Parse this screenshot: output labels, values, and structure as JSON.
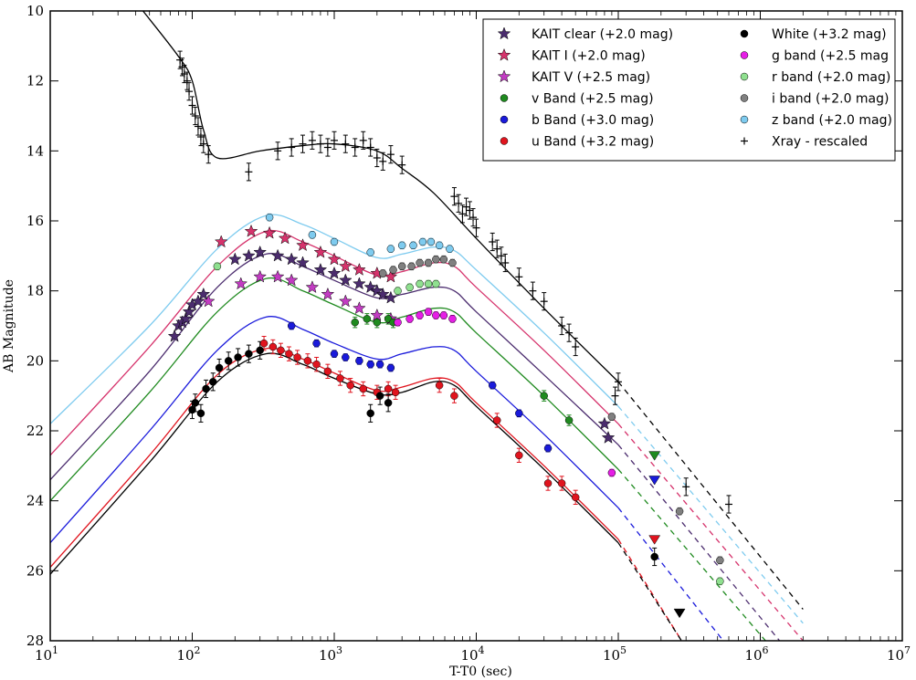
{
  "chart_data": {
    "type": "scatter",
    "xlabel": "T-T0 (sec)",
    "ylabel": "AB Magnitude",
    "xscale": "log",
    "xlim": [
      10,
      10000000
    ],
    "ylim": [
      28,
      10
    ],
    "y_inverted": true,
    "x_tick_labels": [
      "10^1",
      "10^2",
      "10^3",
      "10^4",
      "10^5",
      "10^6",
      "10^7"
    ],
    "x_tick_bases": [
      "10",
      "10",
      "10",
      "10",
      "10",
      "10",
      "10"
    ],
    "x_tick_exponents": [
      "1",
      "2",
      "3",
      "4",
      "5",
      "6",
      "7"
    ],
    "y_tick_labels": [
      "10",
      "12",
      "14",
      "16",
      "18",
      "20",
      "22",
      "24",
      "26",
      "28"
    ],
    "grid": false,
    "legend_position": "top-right",
    "legend": [
      {
        "label": "KAIT clear (+2.0 mag)",
        "marker": "star",
        "color": "#4b2c6e"
      },
      {
        "label": "KAIT I (+2.0 mag)",
        "marker": "star",
        "color": "#d6336c"
      },
      {
        "label": "KAIT V (+2.5 mag)",
        "marker": "star",
        "color": "#c23cc2"
      },
      {
        "label": "v Band (+2.5 mag)",
        "marker": "circle",
        "color": "#1f8a1f"
      },
      {
        "label": "b Band (+3.0 mag)",
        "marker": "circle",
        "color": "#1a1adb"
      },
      {
        "label": "u Band (+3.2 mag)",
        "marker": "circle",
        "color": "#e0141e"
      },
      {
        "label": "White (+3.2 mag)",
        "marker": "circle",
        "color": "#000000"
      },
      {
        "label": "g band (+2.5 mag",
        "marker": "circle",
        "color": "#e61ee6"
      },
      {
        "label": "r band (+2.0 mag)",
        "marker": "circle",
        "color": "#8fe08f"
      },
      {
        "label": "i band (+2.0 mag)",
        "marker": "circle",
        "color": "#808080"
      },
      {
        "label": "z band (+2.0 mag)",
        "marker": "circle",
        "color": "#7ecbef"
      },
      {
        "label": "Xray - rescaled",
        "marker": "plus",
        "color": "#000000"
      }
    ],
    "model_curves": [
      {
        "color": "#7ecbef",
        "x": [
          10,
          50,
          150,
          330,
          600,
          1000,
          2000,
          3000,
          5000,
          7000,
          10000,
          30000,
          100000
        ],
        "y": [
          21.8,
          19.0,
          16.8,
          15.85,
          16.1,
          16.5,
          17.05,
          16.95,
          16.75,
          16.85,
          17.4,
          19.2,
          21.3
        ],
        "dashed_to": [
          2000000,
          27.5
        ]
      },
      {
        "color": "#d6336c",
        "x": [
          10,
          50,
          150,
          330,
          600,
          1000,
          2000,
          3000,
          5000,
          7000,
          10000,
          30000,
          100000
        ],
        "y": [
          22.7,
          19.6,
          17.3,
          16.3,
          16.6,
          17.0,
          17.55,
          17.45,
          17.2,
          17.3,
          17.9,
          19.7,
          21.8
        ],
        "dashed_to": [
          2000000,
          28.0
        ]
      },
      {
        "color": "#4b2c6e",
        "x": [
          10,
          50,
          150,
          330,
          600,
          1000,
          2000,
          3000,
          5000,
          7000,
          10000,
          30000,
          100000
        ],
        "y": [
          23.4,
          20.3,
          17.9,
          16.95,
          17.3,
          17.7,
          18.2,
          18.1,
          17.9,
          18.0,
          18.6,
          20.4,
          22.4
        ],
        "dashed_to": [
          1500000,
          28.2
        ]
      },
      {
        "color": "#1f8a1f",
        "x": [
          10,
          50,
          150,
          330,
          600,
          1000,
          2000,
          3000,
          5000,
          7000,
          10000,
          30000,
          100000
        ],
        "y": [
          24.0,
          20.9,
          18.6,
          17.65,
          18.0,
          18.4,
          18.9,
          18.75,
          18.5,
          18.6,
          19.2,
          21.0,
          23.1
        ],
        "dashed_to": [
          1200000,
          28.2
        ]
      },
      {
        "color": "#1a1adb",
        "x": [
          10,
          50,
          150,
          330,
          600,
          1000,
          2000,
          3000,
          5000,
          7000,
          10000,
          30000,
          100000
        ],
        "y": [
          25.2,
          22.0,
          19.7,
          18.75,
          19.1,
          19.5,
          19.95,
          19.8,
          19.6,
          19.7,
          20.3,
          22.1,
          24.2
        ],
        "dashed_to": [
          600000,
          28.2
        ]
      },
      {
        "color": "#e0141e",
        "x": [
          10,
          50,
          150,
          330,
          600,
          1000,
          2000,
          3000,
          5000,
          7000,
          10000,
          30000,
          100000
        ],
        "y": [
          25.9,
          22.7,
          20.4,
          19.65,
          19.95,
          20.35,
          20.85,
          20.75,
          20.5,
          20.6,
          21.2,
          23.0,
          25.1
        ],
        "dashed_to": [
          300000,
          28.2
        ]
      },
      {
        "color": "#000000",
        "x": [
          10,
          50,
          150,
          330,
          600,
          1000,
          2000,
          3000,
          5000,
          7000,
          10000,
          30000,
          100000
        ],
        "y": [
          26.1,
          22.9,
          20.6,
          19.8,
          20.1,
          20.5,
          20.95,
          20.9,
          20.6,
          20.7,
          21.3,
          23.1,
          25.2
        ],
        "dashed_to": [
          300000,
          28.2
        ]
      },
      {
        "color": "#000000",
        "x": [
          45,
          80,
          100,
          120,
          150,
          300,
          600,
          1000,
          2000,
          3000,
          5000,
          10000,
          30000,
          100000
        ],
        "y": [
          10.0,
          11.3,
          12.0,
          13.4,
          14.2,
          14.0,
          13.85,
          13.8,
          14.0,
          14.5,
          15.2,
          16.5,
          18.5,
          20.6
        ],
        "dashed_to": [
          2000000,
          27.1
        ]
      }
    ],
    "series": [
      {
        "name": "Xray - rescaled",
        "marker": "plus",
        "color": "#000000",
        "err": 0.25,
        "x": [
          82,
          85,
          88,
          92,
          95,
          100,
          105,
          110,
          115,
          120,
          130,
          250,
          400,
          500,
          600,
          700,
          800,
          900,
          1000,
          1200,
          1400,
          1600,
          1800,
          2000,
          2200,
          2500,
          3000,
          7000,
          7500,
          8000,
          8500,
          9000,
          9500,
          10000,
          13000,
          14000,
          15000,
          16000,
          20000,
          25000,
          30000,
          40000,
          45000,
          50000,
          95000,
          100000,
          300000,
          600000
        ],
        "y": [
          11.4,
          11.6,
          11.8,
          12.0,
          12.3,
          12.7,
          13.0,
          13.3,
          13.6,
          13.8,
          14.1,
          14.6,
          14.0,
          13.9,
          13.8,
          13.7,
          13.8,
          13.9,
          13.7,
          13.8,
          13.9,
          13.7,
          13.9,
          14.2,
          14.3,
          14.1,
          14.4,
          15.3,
          15.5,
          15.8,
          15.6,
          15.7,
          15.9,
          16.2,
          16.6,
          16.8,
          17.0,
          17.2,
          17.6,
          18.0,
          18.3,
          19.0,
          19.2,
          19.6,
          21.0,
          20.6,
          23.6,
          24.1
        ]
      },
      {
        "name": "KAIT clear (+2.0 mag)",
        "marker": "star",
        "color": "#4b2c6e",
        "err": 0,
        "x": [
          75,
          80,
          85,
          90,
          95,
          100,
          110,
          120,
          200,
          250,
          300,
          400,
          500,
          600,
          800,
          1000,
          1200,
          1500,
          1800,
          2000,
          2200,
          2500,
          80000,
          85000
        ],
        "y": [
          19.3,
          19.0,
          18.9,
          18.8,
          18.6,
          18.4,
          18.3,
          18.1,
          17.1,
          17.0,
          16.9,
          17.0,
          17.1,
          17.2,
          17.4,
          17.5,
          17.7,
          17.8,
          17.9,
          18.0,
          18.1,
          18.2,
          21.8,
          22.2
        ]
      },
      {
        "name": "KAIT I (+2.0 mag)",
        "marker": "star",
        "color": "#d6336c",
        "err": 0,
        "x": [
          160,
          260,
          350,
          450,
          600,
          800,
          1000,
          1200,
          1500,
          2000,
          2500
        ],
        "y": [
          16.6,
          16.3,
          16.35,
          16.5,
          16.7,
          16.9,
          17.1,
          17.3,
          17.4,
          17.5,
          17.6
        ]
      },
      {
        "name": "KAIT V (+2.5 mag)",
        "marker": "star",
        "color": "#c23cc2",
        "err": 0,
        "x": [
          130,
          220,
          300,
          400,
          500,
          700,
          900,
          1200,
          1500,
          2000,
          2500
        ],
        "y": [
          18.3,
          17.8,
          17.6,
          17.6,
          17.7,
          17.9,
          18.1,
          18.3,
          18.5,
          18.7,
          18.8
        ]
      },
      {
        "name": "v Band (+2.5 mag)",
        "marker": "circle",
        "color": "#1f8a1f",
        "err": 0.15,
        "x": [
          1400,
          1700,
          2000,
          2400,
          2600,
          30000,
          45000
        ],
        "y": [
          18.9,
          18.8,
          18.9,
          18.8,
          18.9,
          21.0,
          21.7
        ]
      },
      {
        "name": "b Band (+3.0 mag)",
        "marker": "circle",
        "color": "#1a1adb",
        "err": 0.1,
        "x": [
          500,
          750,
          1000,
          1200,
          1500,
          1800,
          2100,
          2500,
          13000,
          20000,
          32000
        ],
        "y": [
          19.0,
          19.5,
          19.8,
          19.9,
          20.0,
          20.1,
          20.1,
          20.2,
          20.7,
          21.5,
          22.5
        ]
      },
      {
        "name": "u Band (+3.2 mag)",
        "marker": "circle",
        "color": "#e0141e",
        "err": 0.2,
        "x": [
          320,
          370,
          420,
          480,
          550,
          650,
          750,
          900,
          1100,
          1300,
          1600,
          2000,
          2400,
          2700,
          5500,
          7000,
          14000,
          20000,
          32000,
          40000,
          50000
        ],
        "y": [
          19.5,
          19.6,
          19.7,
          19.8,
          19.9,
          20.0,
          20.1,
          20.3,
          20.5,
          20.7,
          20.8,
          20.9,
          20.8,
          20.9,
          20.7,
          21.0,
          21.7,
          22.7,
          23.5,
          23.5,
          23.9
        ]
      },
      {
        "name": "White (+3.2 mag)",
        "marker": "circle",
        "color": "#000000",
        "err": 0.25,
        "x": [
          100,
          105,
          115,
          125,
          140,
          155,
          180,
          210,
          250,
          300,
          1800,
          2100,
          2400,
          180000
        ],
        "y": [
          21.4,
          21.2,
          21.5,
          20.8,
          20.6,
          20.2,
          20.0,
          19.9,
          19.8,
          19.7,
          21.5,
          21.0,
          21.2,
          25.6
        ]
      },
      {
        "name": "g band (+2.5 mag",
        "marker": "circle",
        "color": "#e61ee6",
        "err": 0.1,
        "x": [
          2800,
          3400,
          4000,
          4600,
          5200,
          5900,
          6800,
          90000
        ],
        "y": [
          18.9,
          18.8,
          18.7,
          18.6,
          18.7,
          18.7,
          18.8,
          23.2
        ]
      },
      {
        "name": "r band (+2.0 mag)",
        "marker": "circle",
        "color": "#8fe08f",
        "err": 0.1,
        "x": [
          150,
          2800,
          3400,
          4000,
          4600,
          5200,
          520000
        ],
        "y": [
          17.3,
          18.0,
          17.9,
          17.8,
          17.8,
          17.8,
          26.3
        ]
      },
      {
        "name": "i band (+2.0 mag)",
        "marker": "circle",
        "color": "#808080",
        "err": 0.1,
        "x": [
          2200,
          2600,
          3000,
          3500,
          4000,
          4600,
          5200,
          5900,
          6800,
          90000,
          270000,
          520000
        ],
        "y": [
          17.5,
          17.4,
          17.3,
          17.3,
          17.2,
          17.2,
          17.1,
          17.1,
          17.2,
          21.6,
          24.3,
          25.7
        ]
      },
      {
        "name": "z band (+2.0 mag)",
        "marker": "circle",
        "color": "#7ecbef",
        "err": 0.1,
        "x": [
          350,
          700,
          1000,
          1800,
          2500,
          3000,
          3600,
          4200,
          4800,
          5500,
          6500
        ],
        "y": [
          15.9,
          16.4,
          16.6,
          16.9,
          16.8,
          16.7,
          16.7,
          16.6,
          16.6,
          16.7,
          16.8
        ]
      }
    ],
    "upper_limits": [
      {
        "color": "#1f8a1f",
        "x": 180000,
        "y": 22.7
      },
      {
        "color": "#1a1adb",
        "x": 180000,
        "y": 23.4
      },
      {
        "color": "#e0141e",
        "x": 180000,
        "y": 25.1
      },
      {
        "color": "#000000",
        "x": 270000,
        "y": 27.2
      }
    ]
  }
}
